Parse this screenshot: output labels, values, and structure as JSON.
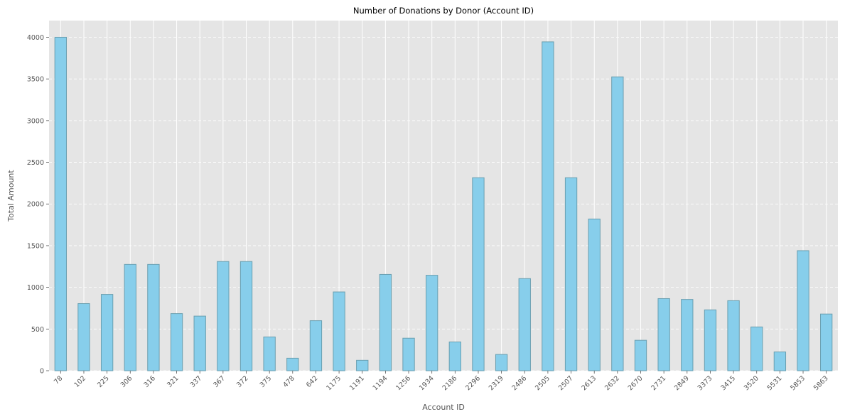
{
  "chart_data": {
    "type": "bar",
    "title": "Number of Donations by Donor (Account ID)",
    "xlabel": "Account ID",
    "ylabel": "Total Amount",
    "categories": [
      "78",
      "102",
      "225",
      "306",
      "316",
      "321",
      "337",
      "367",
      "372",
      "375",
      "478",
      "642",
      "1175",
      "1191",
      "1194",
      "1256",
      "1934",
      "2186",
      "2296",
      "2319",
      "2486",
      "2505",
      "2507",
      "2613",
      "2632",
      "2670",
      "2731",
      "2849",
      "3373",
      "3415",
      "3520",
      "5531",
      "5853",
      "5863"
    ],
    "values": [
      4000,
      805,
      915,
      1275,
      1275,
      685,
      655,
      1310,
      1310,
      405,
      150,
      600,
      945,
      125,
      1155,
      390,
      1145,
      345,
      2315,
      195,
      1105,
      3945,
      2315,
      1820,
      3525,
      365,
      865,
      855,
      730,
      840,
      525,
      225,
      1440,
      680
    ],
    "yticks": [
      0,
      500,
      1000,
      1500,
      2000,
      2500,
      3000,
      3500,
      4000
    ],
    "ylim": [
      0,
      4200
    ],
    "grid": true,
    "bar_color": "#87ceeb",
    "bar_edge_color": "#6a9fb0",
    "background_color": "#e5e5e5",
    "grid_color": "#ffffff"
  }
}
